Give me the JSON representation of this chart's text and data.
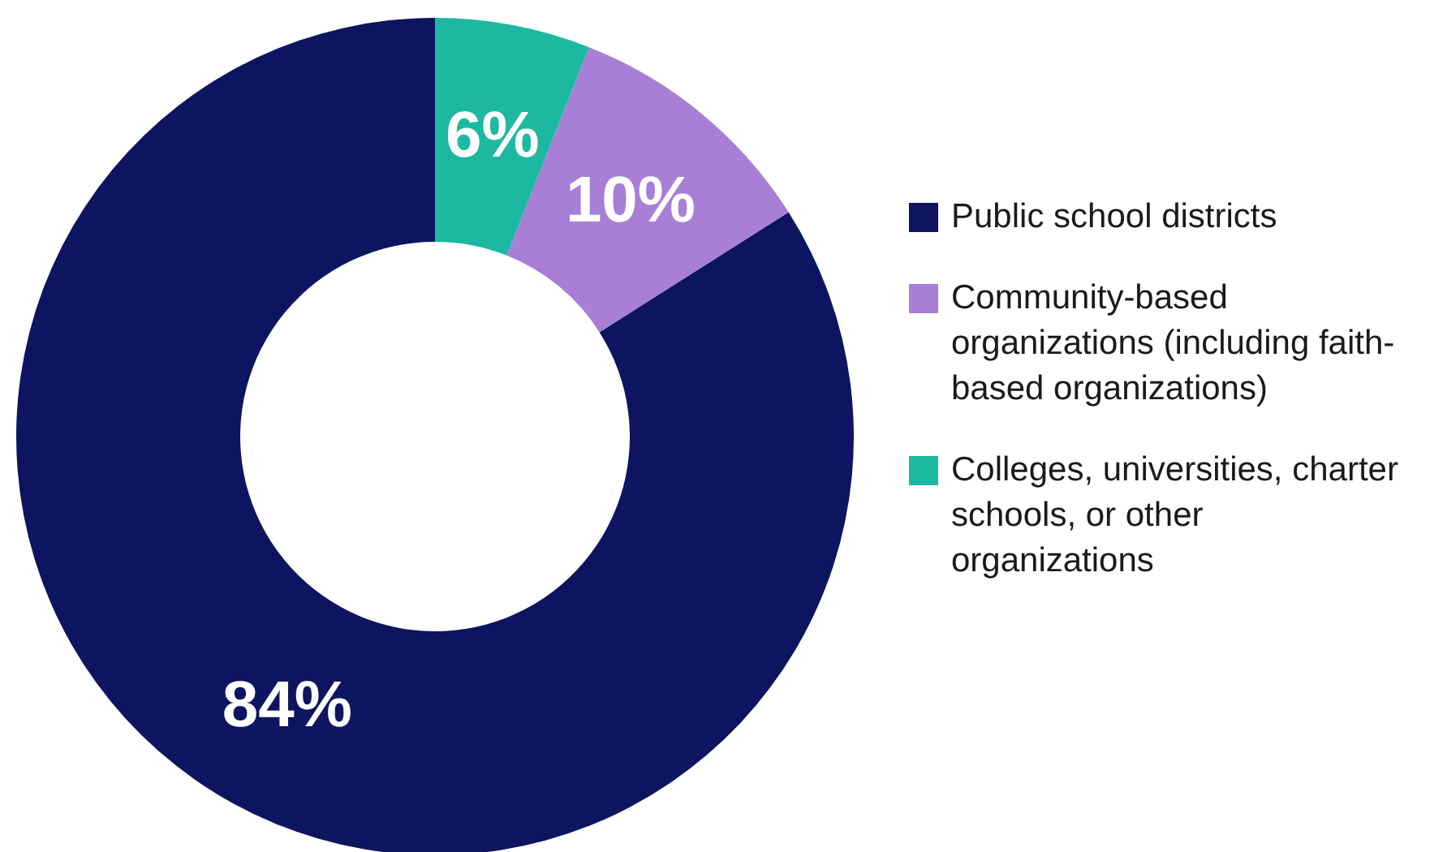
{
  "chart_data": {
    "type": "donut",
    "categories": [
      "Public school districts",
      "Community-based organizations (including faith-based organizations)",
      "Colleges, universities, charter schools, or other organizations"
    ],
    "values": [
      84,
      10,
      6
    ],
    "colors": [
      "#0d1560",
      "#a87ed6",
      "#1cb9a0"
    ],
    "value_labels": [
      "84%",
      "10%",
      "6%"
    ],
    "legend": "right"
  }
}
